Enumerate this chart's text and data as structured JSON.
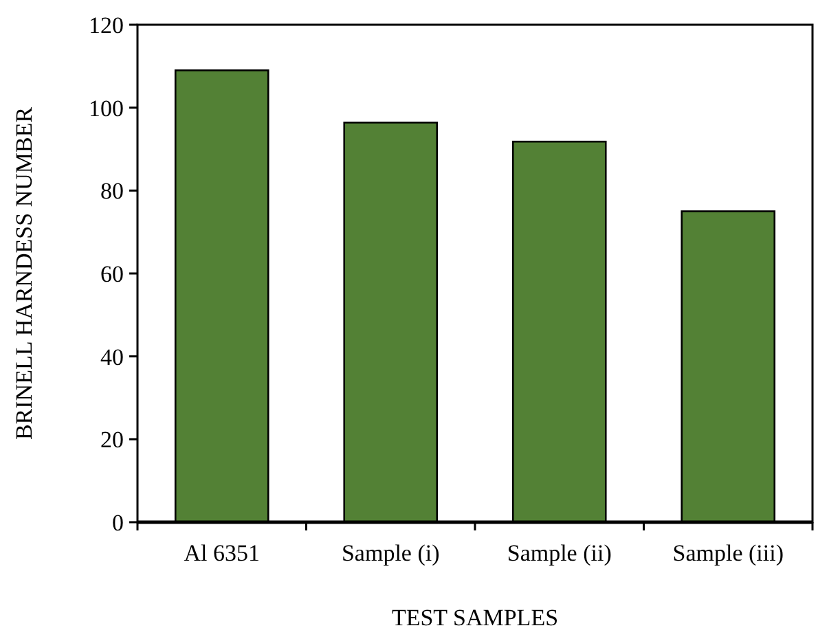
{
  "chart_data": {
    "type": "bar",
    "xlabel": "TEST SAMPLES",
    "ylabel": "BRINELL HARNDESS NUMBER",
    "categories": [
      "Al 6351",
      "Sample (i)",
      "Sample (ii)",
      "Sample (iii)"
    ],
    "values": [
      109,
      96.4,
      91.8,
      75
    ],
    "color": "#538135",
    "ylim": [
      0,
      120
    ],
    "yticks": [
      0,
      20,
      40,
      60,
      80,
      100,
      120
    ],
    "grid": false
  }
}
